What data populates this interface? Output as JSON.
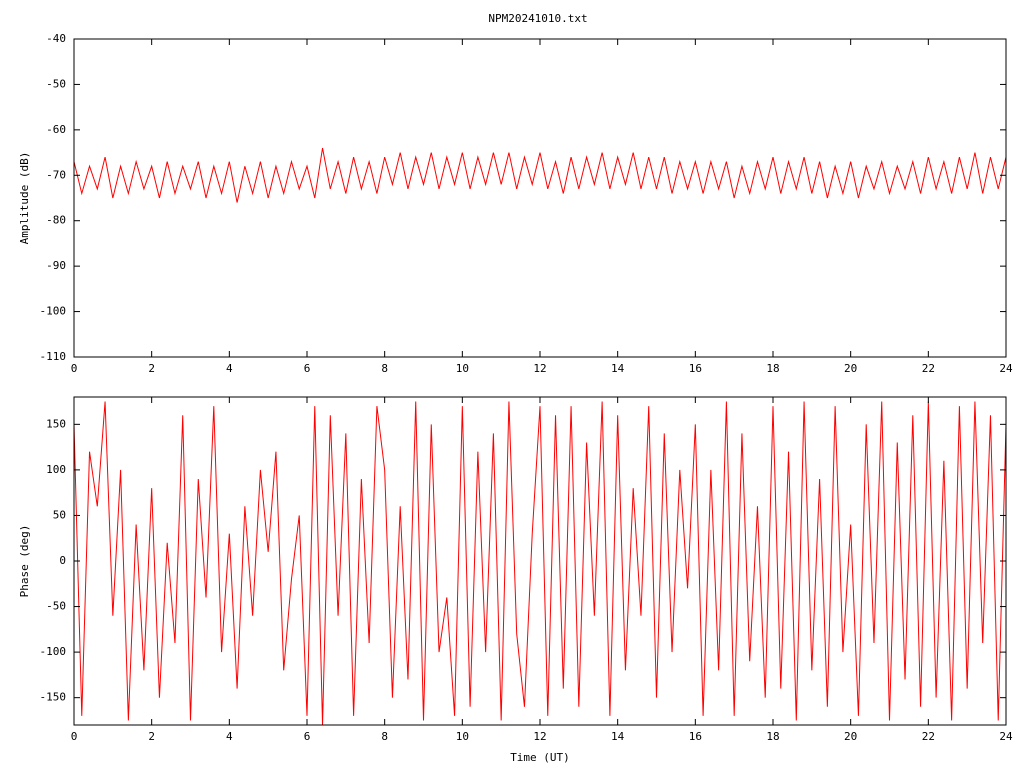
{
  "chart_data": [
    {
      "type": "line",
      "title": "NPM20241010.txt",
      "y_label": "Amplitude (dB)",
      "color": "#ff0000",
      "xlim": [
        0,
        24
      ],
      "xticks": [
        0,
        2,
        4,
        6,
        8,
        10,
        12,
        14,
        16,
        18,
        20,
        22,
        24
      ],
      "ylim": [
        -110,
        -40
      ],
      "yticks": [
        -110,
        -100,
        -90,
        -80,
        -70,
        -60,
        -50,
        -40
      ],
      "grid": false,
      "x": [
        0,
        0.2,
        0.4,
        0.6,
        0.8,
        1,
        1.2,
        1.4,
        1.6,
        1.8,
        2,
        2.2,
        2.4,
        2.6,
        2.8,
        3,
        3.2,
        3.4,
        3.6,
        3.8,
        4,
        4.2,
        4.4,
        4.6,
        4.8,
        5,
        5.2,
        5.4,
        5.6,
        5.8,
        6,
        6.2,
        6.4,
        6.6,
        6.8,
        7,
        7.2,
        7.4,
        7.6,
        7.8,
        8,
        8.2,
        8.4,
        8.6,
        8.8,
        9,
        9.2,
        9.4,
        9.6,
        9.8,
        10,
        10.2,
        10.4,
        10.6,
        10.8,
        11,
        11.2,
        11.4,
        11.6,
        11.8,
        12,
        12.2,
        12.4,
        12.6,
        12.8,
        13,
        13.2,
        13.4,
        13.6,
        13.8,
        14,
        14.2,
        14.4,
        14.6,
        14.8,
        15,
        15.2,
        15.4,
        15.6,
        15.8,
        16,
        16.2,
        16.4,
        16.6,
        16.8,
        17,
        17.2,
        17.4,
        17.6,
        17.8,
        18,
        18.2,
        18.4,
        18.6,
        18.8,
        19,
        19.2,
        19.4,
        19.6,
        19.8,
        20,
        20.2,
        20.4,
        20.6,
        20.8,
        21,
        21.2,
        21.4,
        21.6,
        21.8,
        22,
        22.2,
        22.4,
        22.6,
        22.8,
        23,
        23.2,
        23.4,
        23.6,
        23.8,
        24
      ],
      "values": [
        -67,
        -74,
        -68,
        -73,
        -66,
        -75,
        -68,
        -74,
        -67,
        -73,
        -68,
        -75,
        -67,
        -74,
        -68,
        -73,
        -67,
        -75,
        -68,
        -74,
        -67,
        -76,
        -68,
        -74,
        -67,
        -75,
        -68,
        -74,
        -67,
        -73,
        -68,
        -75,
        -64,
        -73,
        -67,
        -74,
        -66,
        -73,
        -67,
        -74,
        -66,
        -72,
        -65,
        -73,
        -66,
        -72,
        -65,
        -73,
        -66,
        -72,
        -65,
        -73,
        -66,
        -72,
        -65,
        -72,
        -65,
        -73,
        -66,
        -72,
        -65,
        -73,
        -67,
        -74,
        -66,
        -73,
        -66,
        -72,
        -65,
        -73,
        -66,
        -72,
        -65,
        -73,
        -66,
        -73,
        -66,
        -74,
        -67,
        -73,
        -67,
        -74,
        -67,
        -73,
        -67,
        -75,
        -68,
        -74,
        -67,
        -73,
        -66,
        -74,
        -67,
        -73,
        -66,
        -74,
        -67,
        -75,
        -68,
        -74,
        -67,
        -75,
        -68,
        -73,
        -67,
        -74,
        -68,
        -73,
        -67,
        -74,
        -66,
        -73,
        -67,
        -74,
        -66,
        -73,
        -65,
        -74,
        -66,
        -73,
        -66
      ]
    },
    {
      "type": "line",
      "x_label": "Time (UT)",
      "y_label": "Phase (deg)",
      "color": "#ff0000",
      "xlim": [
        0,
        24
      ],
      "xticks": [
        0,
        2,
        4,
        6,
        8,
        10,
        12,
        14,
        16,
        18,
        20,
        22,
        24
      ],
      "ylim": [
        -180,
        180
      ],
      "yticks": [
        -150,
        -100,
        -50,
        0,
        50,
        100,
        150
      ],
      "grid": false,
      "x": [
        0,
        0.2,
        0.4,
        0.6,
        0.8,
        1,
        1.2,
        1.4,
        1.6,
        1.8,
        2,
        2.2,
        2.4,
        2.6,
        2.8,
        3,
        3.2,
        3.4,
        3.6,
        3.8,
        4,
        4.2,
        4.4,
        4.6,
        4.8,
        5,
        5.2,
        5.4,
        5.6,
        5.8,
        6,
        6.2,
        6.4,
        6.6,
        6.8,
        7,
        7.2,
        7.4,
        7.6,
        7.8,
        8,
        8.2,
        8.4,
        8.6,
        8.8,
        9,
        9.2,
        9.4,
        9.6,
        9.8,
        10,
        10.2,
        10.4,
        10.6,
        10.8,
        11,
        11.2,
        11.4,
        11.6,
        11.8,
        12,
        12.2,
        12.4,
        12.6,
        12.8,
        13,
        13.2,
        13.4,
        13.6,
        13.8,
        14,
        14.2,
        14.4,
        14.6,
        14.8,
        15,
        15.2,
        15.4,
        15.6,
        15.8,
        16,
        16.2,
        16.4,
        16.6,
        16.8,
        17,
        17.2,
        17.4,
        17.6,
        17.8,
        18,
        18.2,
        18.4,
        18.6,
        18.8,
        19,
        19.2,
        19.4,
        19.6,
        19.8,
        20,
        20.2,
        20.4,
        20.6,
        20.8,
        21,
        21.2,
        21.4,
        21.6,
        21.8,
        22,
        22.2,
        22.4,
        22.6,
        22.8,
        23,
        23.2,
        23.4,
        23.6,
        23.8,
        24
      ],
      "values": [
        150,
        -170,
        120,
        60,
        175,
        -60,
        100,
        -175,
        40,
        -120,
        80,
        -150,
        20,
        -90,
        160,
        -175,
        90,
        -40,
        170,
        -100,
        30,
        -140,
        60,
        -60,
        100,
        10,
        120,
        -120,
        -20,
        50,
        -170,
        170,
        -180,
        160,
        -60,
        140,
        -170,
        90,
        -90,
        170,
        100,
        -150,
        60,
        -130,
        175,
        -175,
        150,
        -100,
        -40,
        -170,
        170,
        -160,
        120,
        -100,
        140,
        -175,
        175,
        -80,
        -160,
        30,
        170,
        -170,
        160,
        -140,
        170,
        -160,
        130,
        -60,
        175,
        -170,
        160,
        -120,
        80,
        -60,
        170,
        -150,
        140,
        -100,
        100,
        -30,
        150,
        -170,
        100,
        -120,
        175,
        -170,
        140,
        -110,
        60,
        -150,
        170,
        -140,
        120,
        -175,
        175,
        -120,
        90,
        -160,
        170,
        -100,
        40,
        -170,
        150,
        -90,
        175,
        -175,
        130,
        -130,
        160,
        -160,
        175,
        -150,
        110,
        -175,
        170,
        -140,
        175,
        -90,
        160,
        -175,
        150
      ]
    }
  ]
}
